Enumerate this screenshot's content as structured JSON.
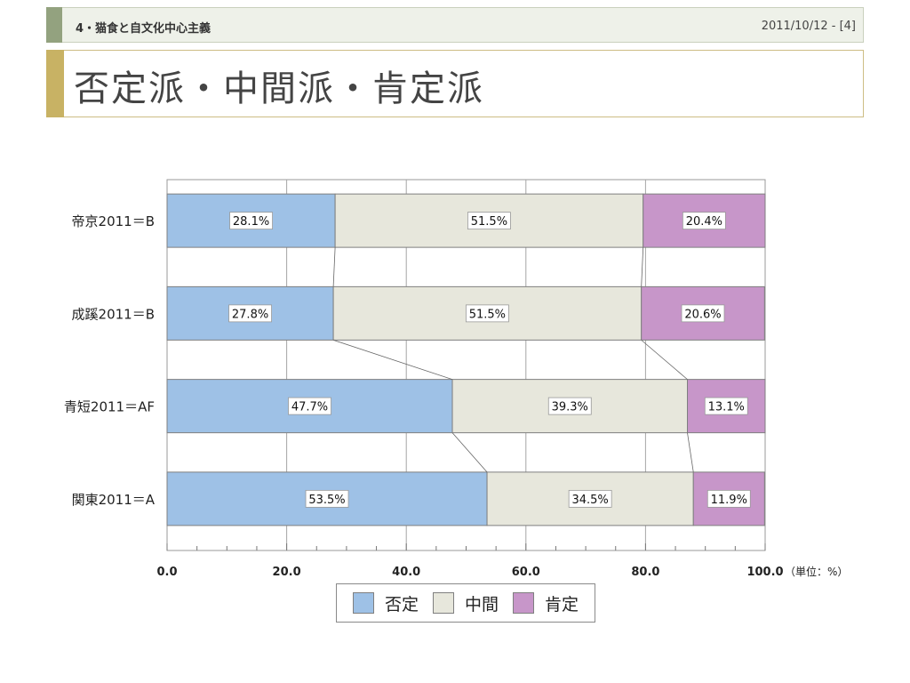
{
  "header": {
    "section": "4・猫食と自文化中心主義",
    "date_page": "2011/10/12 - [4]"
  },
  "slide": {
    "title": "否定派・中間派・肯定派"
  },
  "colors": {
    "negative": "#9ec1e6",
    "neutral": "#e7e7dc",
    "positive": "#c796c9"
  },
  "chart_data": {
    "type": "bar",
    "orientation": "horizontal",
    "stacked": true,
    "categories": [
      "帝京2011＝B",
      "成蹊2011＝B",
      "青短2011＝AF",
      "関東2011＝A"
    ],
    "series": [
      {
        "name": "否定",
        "values": [
          28.1,
          27.8,
          47.7,
          53.5
        ],
        "labels": [
          "28.1%",
          "27.8%",
          "47.7%",
          "53.5%"
        ]
      },
      {
        "name": "中間",
        "values": [
          51.5,
          51.5,
          39.3,
          34.5
        ],
        "labels": [
          "51.5%",
          "51.5%",
          "39.3%",
          "34.5%"
        ]
      },
      {
        "name": "肯定",
        "values": [
          20.4,
          20.6,
          13.1,
          11.9
        ],
        "labels": [
          "20.4%",
          "20.6%",
          "13.1%",
          "11.9%"
        ]
      }
    ],
    "xlim": [
      0,
      100
    ],
    "xticks": [
      "0.0",
      "20.0",
      "40.0",
      "60.0",
      "80.0",
      "100.0"
    ],
    "unit_label": "（単位：%）",
    "grid": true,
    "series_lines": true,
    "legend_position": "bottom"
  }
}
